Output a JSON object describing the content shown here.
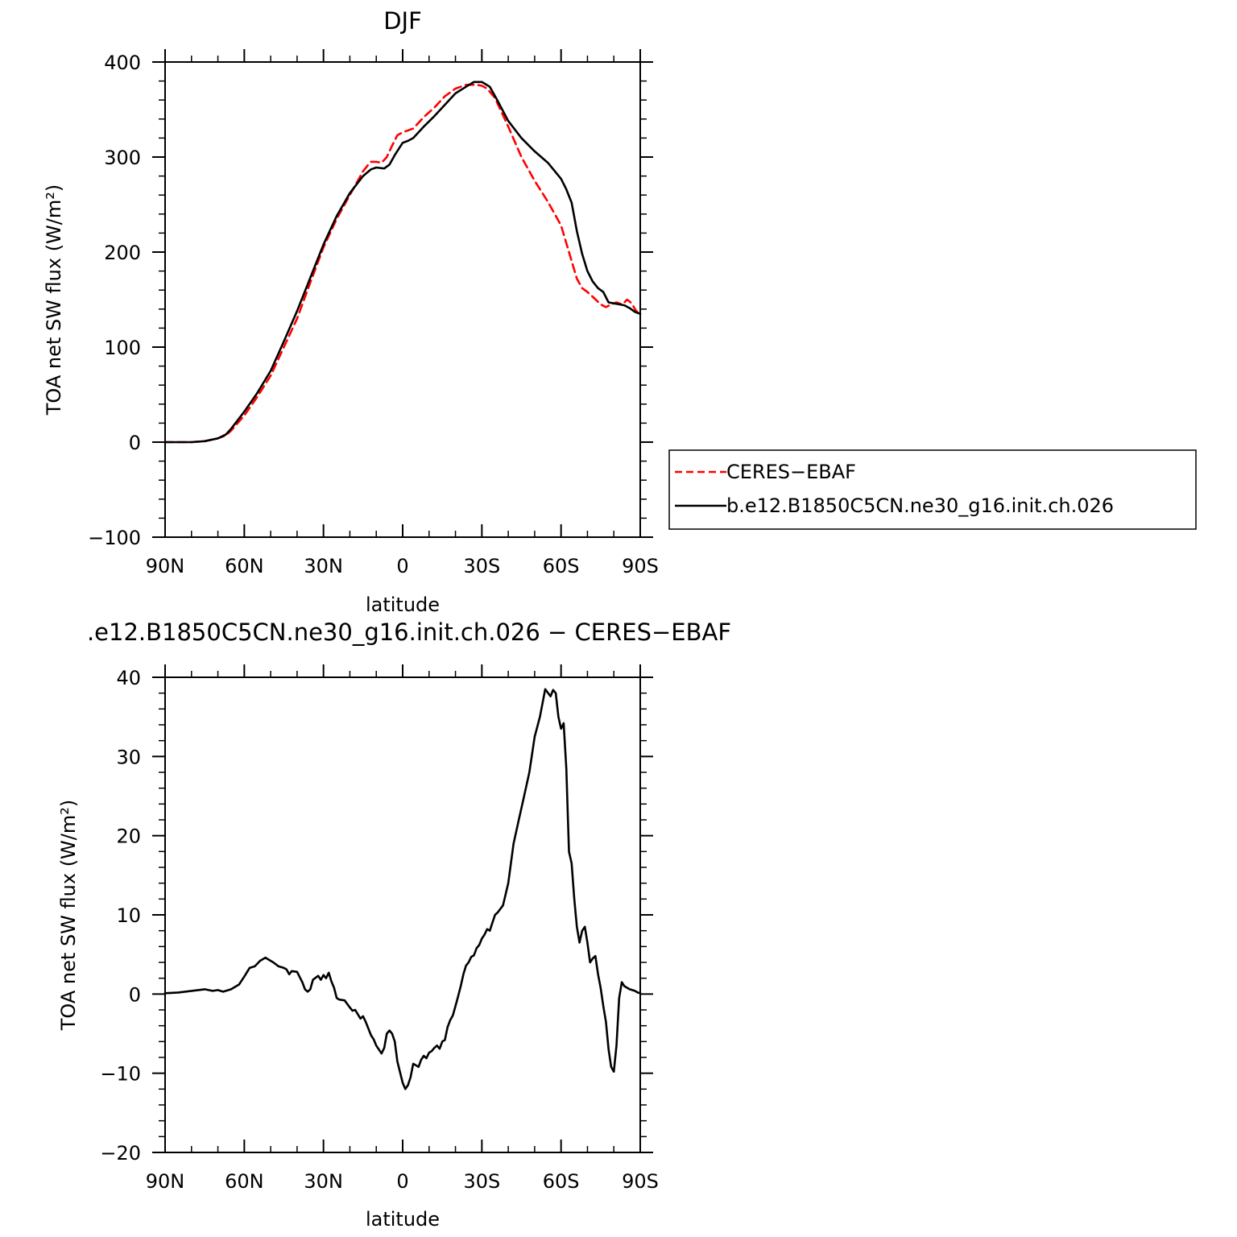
{
  "figure": {
    "colors": {
      "obs": "#ff0000",
      "model": "#000000",
      "axis": "#000000"
    }
  },
  "chart_data": [
    {
      "type": "line",
      "title": "DJF",
      "xlabel": "latitude",
      "ylabel": "TOA net SW flux (W/m²)",
      "xlim": [
        90,
        -90
      ],
      "ylim": [
        -100,
        400
      ],
      "xticks": [
        {
          "value": 90,
          "label": "90N"
        },
        {
          "value": 60,
          "label": "60N"
        },
        {
          "value": 30,
          "label": "30N"
        },
        {
          "value": 0,
          "label": "0"
        },
        {
          "value": -30,
          "label": "30S"
        },
        {
          "value": -60,
          "label": "60S"
        },
        {
          "value": -90,
          "label": "90S"
        }
      ],
      "yticks": [
        {
          "value": 400,
          "label": "400"
        },
        {
          "value": 300,
          "label": "300"
        },
        {
          "value": 200,
          "label": "200"
        },
        {
          "value": 100,
          "label": "100"
        },
        {
          "value": 0,
          "label": "0"
        },
        {
          "value": -100,
          "label": "−100"
        }
      ],
      "legend": {
        "placement": "right",
        "entries": [
          {
            "label": "CERES−EBAF",
            "series": 0
          },
          {
            "label": "b.e12.B1850C5CN.ne30_g16.init.ch.026",
            "series": 1
          }
        ]
      },
      "series": [
        {
          "name": "CERES−EBAF",
          "color": "#ff0000",
          "dash": "dashed",
          "x": [
            90,
            85,
            80,
            75,
            70,
            67,
            65,
            60,
            55,
            50,
            45,
            40,
            35,
            30,
            25,
            20,
            15,
            13,
            12,
            10,
            8,
            6,
            4,
            2,
            0,
            -4,
            -8,
            -12,
            -16,
            -20,
            -24,
            -28,
            -30,
            -32,
            -35,
            -40,
            -45,
            -50,
            -55,
            -60,
            -63,
            -66,
            -68,
            -70,
            -72,
            -75,
            -77,
            -79,
            -81,
            -83,
            -84,
            -85,
            -86,
            -87,
            -88,
            -90
          ],
          "values": [
            0,
            0,
            0,
            1,
            4,
            7,
            12,
            28,
            48,
            70,
            100,
            130,
            168,
            205,
            235,
            260,
            285,
            292,
            295,
            295,
            294,
            300,
            312,
            323,
            326,
            330,
            342,
            352,
            364,
            372,
            376,
            376,
            375,
            372,
            362,
            332,
            300,
            275,
            253,
            228,
            200,
            172,
            162,
            158,
            153,
            145,
            142,
            145,
            147,
            145,
            147,
            150,
            148,
            145,
            140,
            133
          ]
        },
        {
          "name": "b.e12.B1850C5CN.ne30_g16.init.ch.026",
          "color": "#000000",
          "dash": "solid",
          "x": [
            90,
            85,
            80,
            75,
            70,
            67,
            65,
            60,
            55,
            50,
            45,
            40,
            35,
            30,
            25,
            20,
            15,
            12,
            10,
            7,
            5,
            3,
            0,
            -2,
            -4,
            -8,
            -12,
            -16,
            -20,
            -24,
            -27,
            -30,
            -33,
            -36,
            -40,
            -45,
            -50,
            -55,
            -60,
            -62,
            -64,
            -66,
            -68,
            -70,
            -72,
            -74,
            -76,
            -78,
            -80,
            -82,
            -84,
            -86,
            -88,
            -90
          ],
          "values": [
            0,
            0,
            0,
            1,
            4,
            8,
            14,
            32,
            52,
            75,
            106,
            138,
            173,
            208,
            238,
            262,
            280,
            287,
            289,
            288,
            292,
            302,
            315,
            317,
            320,
            332,
            343,
            355,
            367,
            374,
            379,
            379,
            374,
            359,
            338,
            320,
            306,
            294,
            277,
            266,
            252,
            222,
            198,
            180,
            169,
            162,
            158,
            147,
            146,
            145,
            144,
            141,
            137,
            135
          ]
        }
      ]
    },
    {
      "type": "line",
      "title": ".e12.B1850C5CN.ne30_g16.init.ch.026 − CERES−EBAF",
      "xlabel": "latitude",
      "ylabel": "TOA net SW flux (W/m²)",
      "xlim": [
        90,
        -90
      ],
      "ylim": [
        -20,
        40
      ],
      "xticks": [
        {
          "value": 90,
          "label": "90N"
        },
        {
          "value": 60,
          "label": "60N"
        },
        {
          "value": 30,
          "label": "30N"
        },
        {
          "value": 0,
          "label": "0"
        },
        {
          "value": -30,
          "label": "30S"
        },
        {
          "value": -60,
          "label": "60S"
        },
        {
          "value": -90,
          "label": "90S"
        }
      ],
      "yticks": [
        {
          "value": 40,
          "label": "40"
        },
        {
          "value": 30,
          "label": "30"
        },
        {
          "value": 20,
          "label": "20"
        },
        {
          "value": 10,
          "label": "10"
        },
        {
          "value": 0,
          "label": "0"
        },
        {
          "value": -10,
          "label": "−10"
        },
        {
          "value": -20,
          "label": "−20"
        }
      ],
      "series": [
        {
          "color": "#000000",
          "dash": "solid",
          "x": [
            90,
            85,
            80,
            75,
            72,
            70,
            68,
            65,
            62,
            60,
            58,
            56,
            54,
            52,
            51,
            49,
            47,
            45,
            44,
            43,
            42,
            40,
            38,
            37,
            36,
            35,
            34,
            32,
            31,
            30,
            29,
            28,
            27,
            26,
            25,
            24,
            22,
            20,
            19,
            18,
            16,
            15,
            14,
            12,
            11,
            10,
            8,
            7,
            6,
            5,
            4,
            3,
            2,
            0,
            -1,
            -2,
            -3,
            -4,
            -5,
            -6,
            -7,
            -8,
            -9,
            -10,
            -11,
            -12,
            -13,
            -14,
            -15,
            -16,
            -17,
            -18,
            -19,
            -20,
            -21,
            -22,
            -23,
            -24,
            -25,
            -26,
            -27,
            -28,
            -29,
            -30,
            -31,
            -32,
            -33,
            -34,
            -35,
            -36,
            -38,
            -40,
            -42,
            -44,
            -46,
            -48,
            -50,
            -52,
            -54,
            -56,
            -57,
            -58,
            -59,
            -60,
            -61,
            -62,
            -63,
            -64,
            -65,
            -66,
            -67,
            -68,
            -69,
            -70,
            -71,
            -72,
            -73,
            -74,
            -75,
            -76,
            -77,
            -78,
            -79,
            -80,
            -81,
            -82,
            -83,
            -84,
            -85,
            -86,
            -87,
            -88,
            -89,
            -90
          ],
          "values": [
            0.1,
            0.2,
            0.4,
            0.6,
            0.4,
            0.5,
            0.3,
            0.6,
            1.2,
            2.2,
            3.3,
            3.5,
            4.2,
            4.6,
            4.4,
            4.0,
            3.5,
            3.3,
            3.1,
            2.5,
            2.9,
            2.8,
            1.5,
            0.6,
            0.3,
            0.6,
            1.8,
            2.3,
            1.8,
            2.4,
            2.0,
            2.7,
            1.6,
            0.8,
            -0.5,
            -0.7,
            -0.8,
            -1.7,
            -2.1,
            -2.0,
            -3.1,
            -2.8,
            -3.5,
            -5.2,
            -5.7,
            -6.5,
            -7.5,
            -6.8,
            -5.0,
            -4.6,
            -5.0,
            -6.0,
            -8.5,
            -11.2,
            -12.0,
            -11.5,
            -10.5,
            -8.8,
            -9.0,
            -9.2,
            -8.3,
            -7.8,
            -8.1,
            -7.4,
            -7.2,
            -6.8,
            -6.5,
            -6.9,
            -6.0,
            -5.8,
            -4.2,
            -3.3,
            -2.7,
            -1.5,
            -0.3,
            1.0,
            2.5,
            3.6,
            4.0,
            4.7,
            4.9,
            5.8,
            6.2,
            7.0,
            7.5,
            8.2,
            8.0,
            9.0,
            10.0,
            10.3,
            11.2,
            14.0,
            19.0,
            22.0,
            25.0,
            28.0,
            32.5,
            35.0,
            38.5,
            37.6,
            38.4,
            38.0,
            35.0,
            33.5,
            34.2,
            28.5,
            18.0,
            16.5,
            12.0,
            8.5,
            6.5,
            8.0,
            8.5,
            6.5,
            4.0,
            4.5,
            4.8,
            2.5,
            0.8,
            -1.5,
            -3.5,
            -7.0,
            -9.2,
            -9.8,
            -6.5,
            -0.5,
            1.5,
            1.0,
            0.8,
            0.6,
            0.5,
            0.4,
            0.2,
            0.1
          ]
        }
      ]
    }
  ]
}
